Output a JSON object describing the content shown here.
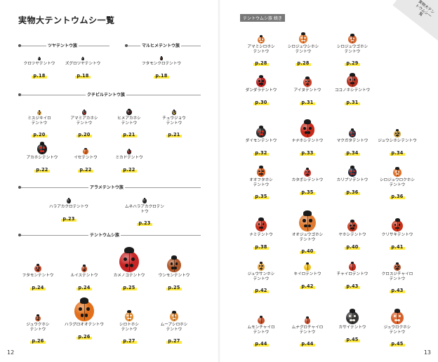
{
  "left": {
    "title": "実物大テントウムシ一覧",
    "page_number": "12",
    "sections": [
      {
        "id": "tsuya",
        "label": "ツヤテントウ族"
      },
      {
        "id": "maruhime",
        "label": "マルヒメテントウ族"
      },
      {
        "id": "kuchibiru",
        "label": "クチビルテントウ族"
      },
      {
        "id": "arame",
        "label": "アラメテントウ族"
      },
      {
        "id": "tentou",
        "label": "テントウムシ族"
      }
    ],
    "species": [
      {
        "name": "クロツヤテントウ",
        "page": "p.18",
        "color": "#1b1b1b",
        "size": 5,
        "spots": "none"
      },
      {
        "name": "ズグロツヤテントウ",
        "page": "p.18",
        "color": "#222",
        "size": 5,
        "spots": "none"
      },
      {
        "name": "フタモンクロテントウ",
        "page": "p.18",
        "color": "#2a1a14",
        "size": 6,
        "spots": "none"
      },
      {
        "name": "ミスジキイロ\nテントウ",
        "page": "p.20",
        "color": "#d9a040",
        "size": 7,
        "spots": "black"
      },
      {
        "name": "アマミアカホシ\nテントウ",
        "page": "p.20",
        "color": "#2a2a2a",
        "size": 8,
        "spots": "red"
      },
      {
        "name": "ヒメアカホシ\nテントウ",
        "page": "p.21",
        "color": "#1e1e1e",
        "size": 9,
        "spots": "red"
      },
      {
        "name": "チュウジョウ\nテントウ",
        "page": "p.21",
        "color": "#282828",
        "size": 8,
        "spots": "yellow"
      },
      {
        "name": "アカホシテントウ",
        "page": "p.22",
        "color": "#1c1c1c",
        "size": 18,
        "spots": "red"
      },
      {
        "name": "イセテントウ",
        "page": "p.22",
        "color": "#d9601c",
        "size": 9,
        "spots": "none"
      },
      {
        "name": "ミカドテントウ",
        "page": "p.22",
        "color": "#1b1b1b",
        "size": 8,
        "spots": "red"
      },
      {
        "name": "ハラアカクロテントウ",
        "page": "p.23",
        "color": "#2a2a2a",
        "size": 8,
        "spots": "none"
      },
      {
        "name": "ムネハラアカクロテントウ",
        "page": "p.23",
        "color": "#2a2a2a",
        "size": 8,
        "spots": "none"
      },
      {
        "name": "フタモンテントウ",
        "page": "p.24",
        "color": "#c8482a",
        "size": 12,
        "spots": "black"
      },
      {
        "name": "ルイステントウ",
        "page": "p.24",
        "color": "#c6502a",
        "size": 11,
        "spots": "black"
      },
      {
        "name": "カメノコテントウ",
        "page": "p.25",
        "color": "#c82626",
        "size": 36,
        "spots": "black"
      },
      {
        "name": "ウンモンテントウ",
        "page": "p.25",
        "color": "#b0582a",
        "size": 24,
        "spots": "black"
      },
      {
        "name": "ジュウクホシ\nテントウ",
        "page": "p.26",
        "color": "#c85a2a",
        "size": 10,
        "spots": "black"
      },
      {
        "name": "ハラグロオオテントウ",
        "page": "p.26",
        "color": "#e2701c",
        "size": 34,
        "spots": "black"
      },
      {
        "name": "シロトホシ\nテントウ",
        "page": "p.27",
        "color": "#e0882e",
        "size": 16,
        "spots": "white"
      },
      {
        "name": "ムーアシロホシ\nテントウ",
        "page": "p.27",
        "color": "#e08a34",
        "size": 15,
        "spots": "white"
      }
    ]
  },
  "right": {
    "header_tag": "テントウムシ族 続き",
    "corner_text": "実物大テントウムシ一覧",
    "page_number": "13",
    "species": [
      {
        "name": "アマミシロホシ\nテントウ",
        "page": "p.28",
        "color": "#d8702a",
        "size": 12,
        "spots": "white"
      },
      {
        "name": "シロジュウシホシ\nテントウ",
        "page": "p.28",
        "color": "#e07830",
        "size": 16,
        "spots": "white"
      },
      {
        "name": "シロジュウゴホシ\nテントウ",
        "page": "p.29",
        "color": "#d8622a",
        "size": 14,
        "spots": "white"
      },
      {
        "name": "ダンダラテントウ",
        "page": "p.30",
        "color": "#b82020",
        "size": 17,
        "spots": "black"
      },
      {
        "name": "アイヌテントウ",
        "page": "p.31",
        "color": "#c8402a",
        "size": 15,
        "spots": "black"
      },
      {
        "name": "ココノホシテントウ",
        "page": "p.31",
        "color": "#b83020",
        "size": 20,
        "spots": "black"
      },
      {
        "name": "ダイモンテントウ",
        "page": "p.32",
        "color": "#2a2a2a",
        "size": 17,
        "spots": "red"
      },
      {
        "name": "ナナホシテントウ",
        "page": "p.33",
        "color": "#c82a1a",
        "size": 26,
        "spots": "black"
      },
      {
        "name": "マクガタテントウ",
        "page": "p.34",
        "color": "#2a2a3a",
        "size": 13,
        "spots": "red"
      },
      {
        "name": "ジュウシホシテントウ",
        "page": "p.34",
        "color": "#caa040",
        "size": 12,
        "spots": "black"
      },
      {
        "name": "オオフタホシ\nテントウ",
        "page": "p.35",
        "color": "#d05a20",
        "size": 16,
        "spots": "black"
      },
      {
        "name": "カタボシテントウ",
        "page": "p.35",
        "color": "#c83028",
        "size": 13,
        "spots": "black"
      },
      {
        "name": "カリプソテントウ",
        "page": "p.36",
        "color": "#22283a",
        "size": 16,
        "spots": "red"
      },
      {
        "name": "シロジュウロクホシ\nテントウ",
        "page": "p.36",
        "color": "#e0702a",
        "size": 14,
        "spots": "white"
      },
      {
        "name": "ナミテントウ",
        "page": "p.38",
        "color": "#c8301c",
        "size": 20,
        "spots": "black"
      },
      {
        "name": "オオジュウゴホシ\nテントウ",
        "page": "p.40",
        "color": "#e07a30",
        "size": 30,
        "spots": "black"
      },
      {
        "name": "ヤホシテントウ",
        "page": "p.40",
        "color": "#c8381c",
        "size": 17,
        "spots": "black"
      },
      {
        "name": "クリサキテントウ",
        "page": "p.41",
        "color": "#c83018",
        "size": 19,
        "spots": "black"
      },
      {
        "name": "ジュウサンホシ\nテントウ",
        "page": "p.42",
        "color": "#e0a040",
        "size": 13,
        "spots": "black"
      },
      {
        "name": "キイロテントウ",
        "page": "p.42",
        "color": "#f0c020",
        "size": 12,
        "spots": "none"
      },
      {
        "name": "チャイロテントウ",
        "page": "p.43",
        "color": "#c02a1a",
        "size": 13,
        "spots": "none"
      },
      {
        "name": "クロスジチャイロ\nテントウ",
        "page": "p.43",
        "color": "#b0502a",
        "size": 12,
        "spots": "black"
      },
      {
        "name": "ムモンチャイロ\nテントウ",
        "page": "p.44",
        "color": "#c0502a",
        "size": 12,
        "spots": "none"
      },
      {
        "name": "ムナグロチャイロ\nテントウ",
        "page": "p.44",
        "color": "#c04a2a",
        "size": 11,
        "spots": "none"
      },
      {
        "name": "カサイテントウ",
        "page": "p.45",
        "color": "#333",
        "size": 22,
        "spots": "white"
      },
      {
        "name": "ジュウロクホシ\nテントウ",
        "page": "p.45",
        "color": "#d8602a",
        "size": 22,
        "spots": "white"
      }
    ]
  }
}
